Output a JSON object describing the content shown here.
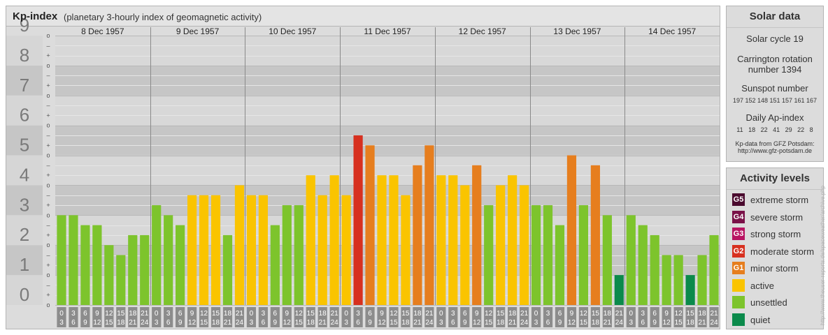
{
  "kp_panel": {
    "title": "Kp-index",
    "subtitle": "(planetary 3-hourly index of geomagnetic activity)"
  },
  "chart_data": {
    "type": "bar",
    "y_axis_labels": [
      "0",
      "1",
      "2",
      "3",
      "4",
      "5",
      "6",
      "7",
      "8",
      "9"
    ],
    "sub_ticks": [
      "o",
      "+",
      "–"
    ],
    "ylim": [
      0,
      9
    ],
    "days": [
      "8 Dec 1957",
      "9 Dec 1957",
      "10 Dec 1957",
      "11 Dec 1957",
      "12 Dec 1957",
      "13 Dec 1957",
      "14 Dec 1957"
    ],
    "interval_labels": [
      [
        "0",
        "3"
      ],
      [
        "3",
        "6"
      ],
      [
        "6",
        "9"
      ],
      [
        "9",
        "12"
      ],
      [
        "12",
        "15"
      ],
      [
        "15",
        "18"
      ],
      [
        "18",
        "21"
      ],
      [
        "21",
        "24"
      ]
    ],
    "values": [
      3.0,
      3.0,
      2.667,
      2.667,
      2.0,
      1.667,
      2.333,
      2.333,
      3.333,
      3.0,
      2.667,
      3.667,
      3.667,
      3.667,
      2.333,
      4.0,
      3.667,
      3.667,
      2.667,
      3.333,
      3.333,
      4.333,
      3.667,
      4.333,
      3.667,
      5.667,
      5.333,
      4.333,
      4.333,
      3.667,
      4.667,
      5.333,
      4.333,
      4.333,
      4.0,
      4.667,
      3.333,
      4.0,
      4.333,
      4.0,
      3.333,
      3.333,
      2.667,
      5.0,
      3.333,
      4.667,
      3.0,
      1.0,
      3.0,
      2.667,
      2.333,
      1.667,
      1.667,
      1.0,
      1.667,
      2.333
    ],
    "colors": {
      "quiet": "#0b8a4b",
      "unsettled": "#7dc42c",
      "active": "#fac400",
      "minor_storm": "#e67e1e",
      "moderate_storm": "#d7301f"
    }
  },
  "solar": {
    "title": "Solar data",
    "cycle": "Solar cycle 19",
    "carrington_line1": "Carrington rotation",
    "carrington_line2": "number 1394",
    "sunspot_label": "Sunspot number",
    "sunspot_values": "197 152 148 151 157 161 167",
    "ap_label": "Daily Ap-index",
    "ap_values": "11   18   22   41   29   22   8",
    "source_line1": "Kp-data from GFZ Potsdam:",
    "source_line2": "http://www.gfz-potsdam.de"
  },
  "activity": {
    "title": "Activity levels",
    "levels": [
      {
        "code": "G5",
        "label": "extreme storm",
        "color": "#4a0a2e"
      },
      {
        "code": "G4",
        "label": "severe storm",
        "color": "#7a1148"
      },
      {
        "code": "G3",
        "label": "strong storm",
        "color": "#b81462"
      },
      {
        "code": "G2",
        "label": "moderate storm",
        "color": "#d7301f"
      },
      {
        "code": "G1",
        "label": "minor storm",
        "color": "#e67e1e"
      },
      {
        "code": "",
        "label": "active",
        "color": "#fac400"
      },
      {
        "code": "",
        "label": "unsettled",
        "color": "#7dc42c"
      },
      {
        "code": "",
        "label": "quiet",
        "color": "#0b8a4b"
      }
    ]
  },
  "credit": "http://www.theuser-reports.de/spaceweather/archive.php"
}
